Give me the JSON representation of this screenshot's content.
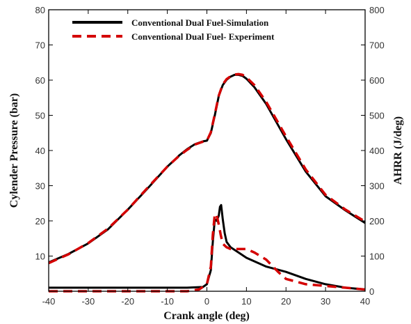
{
  "colors": {
    "simulation": "#000000",
    "experiment": "#d40000",
    "axis": "#000000"
  },
  "chart_data": {
    "type": "line",
    "title": "",
    "xlabel": "Crank angle (deg)",
    "ylabel": "Cylender Pressure (bar)",
    "y2label": "AHRR (J/deg)",
    "xlim": [
      -40,
      40
    ],
    "ylim": [
      0,
      80
    ],
    "y2lim": [
      0,
      800
    ],
    "xticks": [
      -40,
      -30,
      -20,
      -10,
      0,
      10,
      20,
      30,
      40
    ],
    "yticks": [
      10,
      20,
      30,
      40,
      50,
      60,
      70,
      80
    ],
    "y2ticks": [
      0,
      100,
      200,
      300,
      400,
      500,
      600,
      700,
      800
    ],
    "grid": false,
    "legend": "top-left",
    "legend_entries": [
      "Conventional Dual Fuel-Simulation",
      "Conventional Dual Fuel- Experiment"
    ],
    "series": [
      {
        "name": "Conventional Dual Fuel-Simulation",
        "style": "solid",
        "axis": "left",
        "x": [
          -40,
          -35,
          -30,
          -25,
          -20,
          -15,
          -10,
          -7,
          -5,
          -3,
          -1,
          0,
          1,
          2,
          3,
          4,
          5,
          6,
          7,
          8,
          9,
          10,
          12,
          15,
          20,
          25,
          30,
          35,
          40
        ],
        "y": [
          8.2,
          10.6,
          13.6,
          17.6,
          23.2,
          29.2,
          35.4,
          38.6,
          40.4,
          41.8,
          42.6,
          42.8,
          45,
          50,
          55.5,
          58.6,
          60.1,
          61,
          61.5,
          61.5,
          61.2,
          60.4,
          58,
          53.2,
          43.2,
          34,
          27,
          23,
          19.4
        ]
      },
      {
        "name": "Conventional Dual Fuel- Experiment",
        "style": "dashed",
        "axis": "left",
        "x": [
          -40,
          -35,
          -30,
          -25,
          -20,
          -15,
          -10,
          -7,
          -5,
          -3,
          -1,
          0,
          1,
          2,
          3,
          4,
          5,
          6,
          7,
          8,
          9,
          10,
          12,
          15,
          20,
          25,
          30,
          35,
          40
        ],
        "y": [
          8,
          10.5,
          13.7,
          17.8,
          23.2,
          29.4,
          35.4,
          38.5,
          40.2,
          41.7,
          42.5,
          42.8,
          45.2,
          50.3,
          55.6,
          58.8,
          60.3,
          61.1,
          61.6,
          61.7,
          61.5,
          60.8,
          58.6,
          53.8,
          44,
          34.6,
          27.4,
          23.2,
          19.8
        ]
      },
      {
        "name": "Conventional Dual Fuel-Simulation",
        "style": "solid",
        "axis": "right",
        "x": [
          -40,
          -5,
          -1,
          0,
          1,
          1.5,
          2,
          2.5,
          3,
          3.3,
          3.6,
          4,
          4.5,
          5,
          6,
          8,
          10,
          15,
          20,
          25,
          30,
          35,
          40
        ],
        "y": [
          10,
          10,
          12,
          20,
          60,
          140,
          205,
          200,
          215,
          240,
          245,
          205,
          165,
          140,
          125,
          110,
          95,
          70,
          55,
          35,
          20,
          10,
          5
        ]
      },
      {
        "name": "Conventional Dual Fuel- Experiment",
        "style": "dashed",
        "axis": "right",
        "x": [
          -40,
          -5,
          -2,
          0,
          1,
          1.5,
          2,
          2.5,
          3,
          3.5,
          4,
          5,
          6,
          8,
          10,
          12,
          15,
          18,
          20,
          25,
          30,
          35,
          40
        ],
        "y": [
          0,
          0,
          5,
          20,
          70,
          160,
          220,
          215,
          190,
          160,
          135,
          125,
          120,
          120,
          120,
          110,
          90,
          55,
          35,
          20,
          15,
          10,
          5
        ]
      }
    ]
  }
}
